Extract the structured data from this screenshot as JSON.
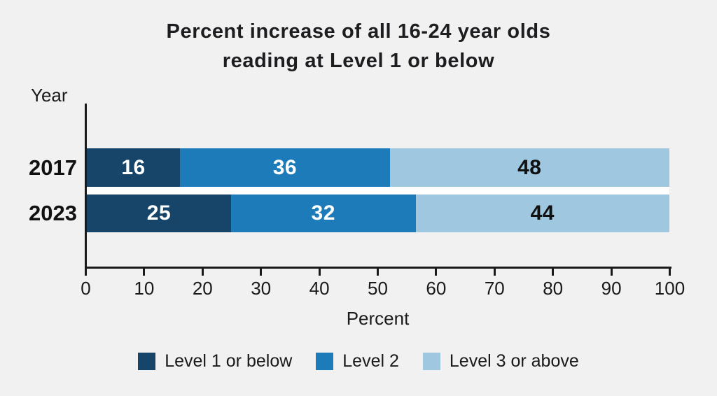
{
  "title": {
    "line1": "Percent increase of all 16-24 year olds",
    "line2": "reading at Level 1 or below"
  },
  "axis": {
    "y_title": "Year",
    "x_title": "Percent"
  },
  "legend": [
    {
      "label": "Level 1 or below",
      "color": "#164569"
    },
    {
      "label": "Level 2",
      "color": "#1e7bb9"
    },
    {
      "label": "Level 3 or above",
      "color": "#9fc8e0"
    }
  ],
  "colors": {
    "background": "#f1f1f2",
    "axis": "#1a1a1a",
    "bar_gap": "#ffffff",
    "dark_blue": "#164569",
    "mid_blue": "#1e7bb9",
    "light_blue": "#9fc8e0"
  },
  "chart_data": {
    "type": "bar",
    "orientation": "horizontal",
    "stacked": true,
    "title": "Percent increase of all 16-24 year olds reading at Level 1 or below",
    "categories": [
      "2017",
      "2023"
    ],
    "series": [
      {
        "name": "Level 1 or below",
        "color": "#164569",
        "label_color": "#ffffff",
        "values": [
          16,
          25
        ]
      },
      {
        "name": "Level 2",
        "color": "#1e7bb9",
        "label_color": "#ffffff",
        "values": [
          36,
          32
        ]
      },
      {
        "name": "Level 3 or above",
        "color": "#9fc8e0",
        "label_color": "#111111",
        "values": [
          48,
          44
        ]
      }
    ],
    "xlabel": "Percent",
    "ylabel": "Year",
    "xlim": [
      0,
      100
    ],
    "xticks": [
      0,
      10,
      20,
      30,
      40,
      50,
      60,
      70,
      80,
      90,
      100
    ],
    "grid": false,
    "legend_position": "bottom"
  }
}
